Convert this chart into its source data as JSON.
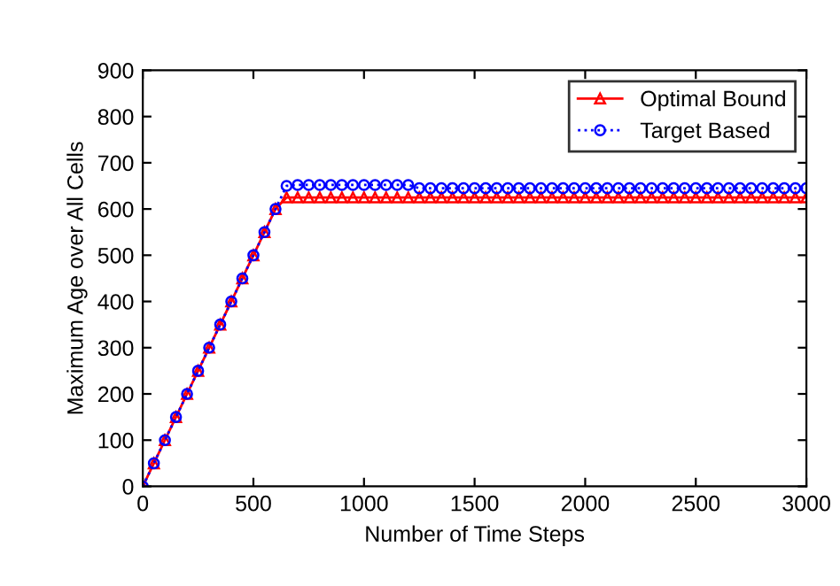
{
  "chart_data": {
    "type": "line",
    "xlabel": "Number of Time Steps",
    "ylabel": "Maximum Age over All Cells",
    "x": [
      0,
      50,
      100,
      150,
      200,
      250,
      300,
      350,
      400,
      450,
      500,
      550,
      600,
      650,
      700,
      750,
      800,
      850,
      900,
      950,
      1000,
      1050,
      1100,
      1150,
      1200,
      1250,
      1300,
      1350,
      1400,
      1450,
      1500,
      1550,
      1600,
      1650,
      1700,
      1750,
      1800,
      1850,
      1900,
      1950,
      2000,
      2050,
      2100,
      2150,
      2200,
      2250,
      2300,
      2350,
      2400,
      2450,
      2500,
      2550,
      2600,
      2650,
      2700,
      2750,
      2800,
      2850,
      2900,
      2950,
      3000
    ],
    "series": [
      {
        "name": "Optimal Bound",
        "color": "#ff0000",
        "marker": "triangle",
        "line_style": "solid",
        "values": [
          0,
          50,
          100,
          150,
          200,
          250,
          300,
          350,
          400,
          450,
          500,
          550,
          600,
          625,
          625,
          625,
          625,
          625,
          625,
          625,
          625,
          625,
          625,
          625,
          625,
          625,
          625,
          625,
          625,
          625,
          625,
          625,
          625,
          625,
          625,
          625,
          625,
          625,
          625,
          625,
          625,
          625,
          625,
          625,
          625,
          625,
          625,
          625,
          625,
          625,
          625,
          625,
          625,
          625,
          625,
          625,
          625,
          625,
          625,
          625,
          625
        ]
      },
      {
        "name": "Target Based",
        "color": "#0000ff",
        "marker": "circle",
        "line_style": "dotted",
        "values": [
          0,
          50,
          100,
          150,
          200,
          250,
          300,
          350,
          400,
          450,
          500,
          550,
          600,
          650,
          652,
          652,
          652,
          652,
          652,
          652,
          652,
          652,
          652,
          652,
          652,
          645,
          645,
          645,
          645,
          645,
          645,
          645,
          645,
          645,
          645,
          645,
          645,
          645,
          645,
          645,
          645,
          645,
          645,
          645,
          645,
          645,
          645,
          645,
          645,
          645,
          645,
          645,
          645,
          645,
          645,
          645,
          645,
          645,
          645,
          645,
          645
        ]
      }
    ],
    "xlim": [
      0,
      3000
    ],
    "xticks": [
      0,
      500,
      1000,
      1500,
      2000,
      2500,
      3000
    ],
    "ylim": [
      0,
      900
    ],
    "yticks": [
      0,
      100,
      200,
      300,
      400,
      500,
      600,
      700,
      800,
      900
    ],
    "grid": false,
    "legend": "top right"
  }
}
